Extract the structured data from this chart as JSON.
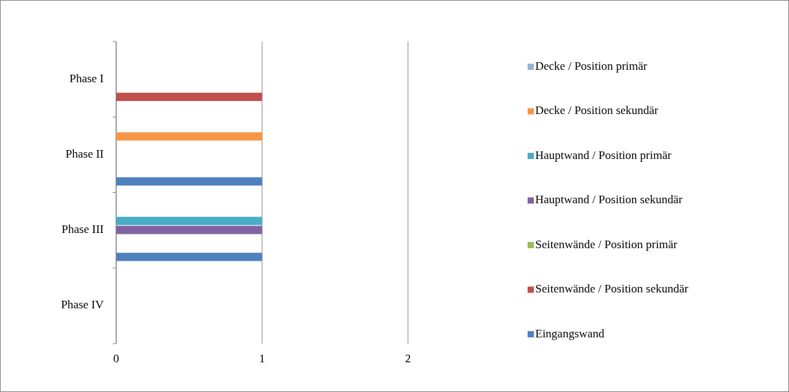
{
  "chart_data": {
    "type": "bar",
    "orientation": "horizontal",
    "categories": [
      "Phase I",
      "Phase II",
      "Phase III",
      "Phase IV"
    ],
    "series": [
      {
        "name": "Decke / Position primär",
        "color": "#95b3d7",
        "values": [
          null,
          null,
          null,
          null
        ]
      },
      {
        "name": "Decke / Position sekundär",
        "color": "#f79646",
        "values": [
          null,
          1,
          null,
          null
        ]
      },
      {
        "name": "Hauptwand / Position primär",
        "color": "#4bacc6",
        "values": [
          null,
          null,
          1,
          null
        ]
      },
      {
        "name": "Hauptwand / Position sekundär",
        "color": "#8064a2",
        "values": [
          null,
          null,
          1,
          null
        ]
      },
      {
        "name": "Seitenwände / Position primär",
        "color": "#9bbb59",
        "values": [
          null,
          null,
          null,
          null
        ]
      },
      {
        "name": "Seitenwände / Position sekundär",
        "color": "#c0504d",
        "values": [
          1,
          null,
          null,
          null
        ]
      },
      {
        "name": "Eingangswand",
        "color": "#4f81bd",
        "values": [
          null,
          1,
          1,
          null
        ]
      }
    ],
    "xlim": [
      0,
      2
    ],
    "xticks": [
      0,
      1,
      2
    ],
    "grid": "x",
    "legend": "right"
  }
}
